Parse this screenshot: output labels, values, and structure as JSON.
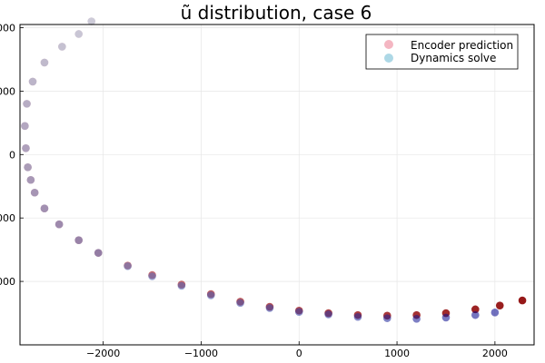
{
  "chart_data": {
    "type": "scatter",
    "title": "ũ distribution, case 6",
    "xlabel": "",
    "ylabel": "",
    "xlim": [
      -2850,
      2400
    ],
    "ylim": [
      -3000,
      2050
    ],
    "x_ticks": [
      -2000,
      -1000,
      0,
      1000,
      2000
    ],
    "x_tick_labels": [
      "−2000",
      "−1000",
      "0",
      "1000",
      "2000"
    ],
    "y_ticks": [
      -2000,
      -1000,
      0,
      1000,
      2000
    ],
    "y_tick_labels": [
      "000",
      "000",
      "0",
      "000",
      "000"
    ],
    "grid": true,
    "legend_position": "top-right",
    "series": [
      {
        "name": "Encoder prediction",
        "color": "#f4b6c2",
        "color_end": "#8b0000",
        "x": [
          -2120,
          -2250,
          -2420,
          -2600,
          -2720,
          -2780,
          -2800,
          -2790,
          -2770,
          -2740,
          -2700,
          -2600,
          -2450,
          -2250,
          -2050,
          -1750,
          -1500,
          -1200,
          -900,
          -600,
          -300,
          0,
          300,
          600,
          900,
          1200,
          1500,
          1800,
          2050,
          2280
        ],
        "y": [
          2100,
          1900,
          1700,
          1450,
          1150,
          800,
          450,
          100,
          -200,
          -400,
          -600,
          -850,
          -1100,
          -1350,
          -1550,
          -1750,
          -1900,
          -2050,
          -2200,
          -2320,
          -2400,
          -2460,
          -2500,
          -2530,
          -2540,
          -2530,
          -2500,
          -2440,
          -2380,
          -2300
        ]
      },
      {
        "name": "Dynamics solve",
        "color": "#add8e6",
        "color_end": "#00008b",
        "x": [
          -2120,
          -2250,
          -2420,
          -2600,
          -2720,
          -2780,
          -2800,
          -2790,
          -2770,
          -2740,
          -2700,
          -2600,
          -2450,
          -2250,
          -2050,
          -1750,
          -1500,
          -1200,
          -900,
          -600,
          -300,
          0,
          300,
          600,
          900,
          1200,
          1500,
          1800,
          2000
        ],
        "y": [
          2100,
          1900,
          1700,
          1450,
          1150,
          800,
          450,
          100,
          -200,
          -400,
          -600,
          -850,
          -1100,
          -1350,
          -1550,
          -1760,
          -1920,
          -2070,
          -2220,
          -2340,
          -2420,
          -2480,
          -2520,
          -2560,
          -2580,
          -2590,
          -2570,
          -2530,
          -2490
        ]
      }
    ]
  }
}
